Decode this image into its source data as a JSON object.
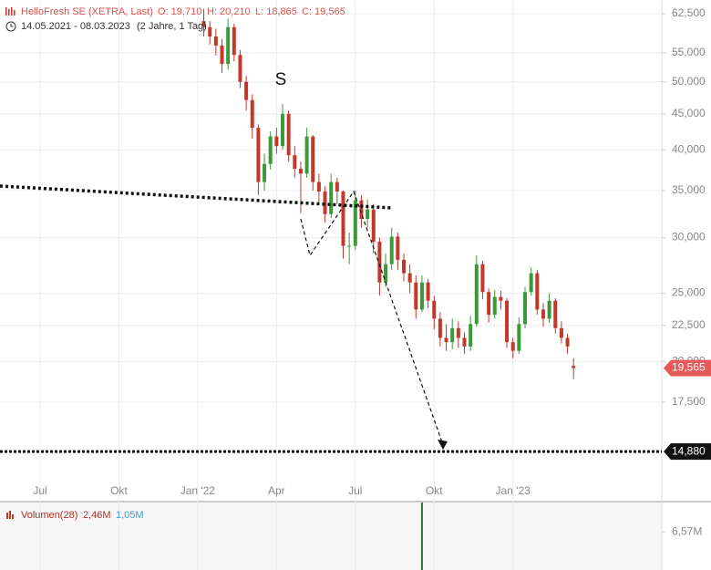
{
  "chart_data": [
    {
      "type": "candlestick",
      "title": "HelloFresh SE (XETRA, Last)",
      "ohlc_labels": [
        "O: 19,710",
        "H: 20,210",
        "L: 18,865",
        "C: 19,565"
      ],
      "date_range": "14.05.2021 - 08.03.2023",
      "period": "(2 Jahre, 1 Tag)",
      "annotation": "S",
      "log_scale": true,
      "grid": true,
      "up_color": "#3a9a3a",
      "down_color": "#c0392b",
      "categories": [
        null,
        null,
        null,
        null,
        null,
        null,
        "Jul",
        null,
        null,
        null,
        null,
        null,
        null,
        null,
        null,
        null,
        null,
        null,
        null,
        "Okt",
        null,
        null,
        null,
        null,
        null,
        null,
        null,
        null,
        null,
        null,
        null,
        null,
        "Jan '22",
        null,
        null,
        null,
        null,
        null,
        null,
        null,
        null,
        null,
        null,
        null,
        null,
        "Apr",
        null,
        null,
        null,
        null,
        null,
        null,
        null,
        null,
        null,
        null,
        null,
        null,
        "Jul",
        null,
        null,
        null,
        null,
        null,
        null,
        null,
        null,
        null,
        null,
        null,
        null,
        "Okt",
        null,
        null,
        null,
        null,
        null,
        null,
        null,
        null,
        null,
        null,
        null,
        null,
        "Jan '23",
        null,
        null,
        null,
        null,
        null,
        null,
        null,
        null,
        null,
        null
      ],
      "open": [
        null,
        null,
        null,
        null,
        null,
        null,
        null,
        null,
        null,
        null,
        null,
        null,
        null,
        null,
        null,
        null,
        null,
        null,
        null,
        null,
        null,
        null,
        null,
        null,
        null,
        null,
        null,
        null,
        null,
        null,
        null,
        null,
        null,
        61000,
        59800,
        58000,
        56300,
        53000,
        59800,
        54600,
        50000,
        47100,
        43000,
        36000,
        38200,
        41800,
        40500,
        45000,
        39300,
        37600,
        37000,
        41800,
        36000,
        34900,
        32400,
        36000,
        34900,
        29200,
        29200,
        33900,
        31900,
        32900,
        29600,
        25900,
        27500,
        30100,
        27900,
        26700,
        25900,
        23700,
        25900,
        24400,
        23000,
        21600,
        21300,
        22300,
        21600,
        21000,
        22600,
        27500,
        25100,
        23300,
        24700,
        24400,
        21300,
        20700,
        22600,
        25100,
        26700,
        23700,
        23000,
        24400,
        22300,
        21600,
        19710
      ],
      "high": [
        null,
        null,
        null,
        null,
        null,
        null,
        null,
        null,
        null,
        null,
        null,
        null,
        null,
        null,
        null,
        null,
        null,
        null,
        null,
        null,
        null,
        null,
        null,
        null,
        null,
        null,
        null,
        null,
        null,
        null,
        null,
        null,
        null,
        63500,
        61000,
        59500,
        57500,
        61500,
        60500,
        55500,
        51000,
        48000,
        43500,
        39500,
        42500,
        43000,
        46500,
        45500,
        40500,
        38500,
        43000,
        42000,
        37000,
        35500,
        37000,
        36500,
        35000,
        30500,
        35000,
        34500,
        34000,
        33500,
        30000,
        28500,
        31000,
        30500,
        28500,
        27500,
        26500,
        26500,
        26200,
        24800,
        23500,
        22600,
        23000,
        22800,
        22000,
        23200,
        28300,
        27800,
        25400,
        25300,
        25200,
        24600,
        21600,
        23100,
        25500,
        27200,
        27000,
        24200,
        25000,
        24600,
        22800,
        21900,
        20210
      ],
      "low": [
        null,
        null,
        null,
        null,
        null,
        null,
        null,
        null,
        null,
        null,
        null,
        null,
        null,
        null,
        null,
        null,
        null,
        null,
        null,
        null,
        null,
        null,
        null,
        null,
        null,
        null,
        null,
        null,
        null,
        null,
        null,
        null,
        null,
        58000,
        56500,
        54500,
        51500,
        52000,
        53500,
        49000,
        45500,
        41500,
        34500,
        35000,
        37500,
        39500,
        40000,
        38500,
        36500,
        32500,
        36500,
        35000,
        33500,
        31500,
        32000,
        33500,
        28000,
        27500,
        28800,
        31000,
        31000,
        28500,
        24800,
        25500,
        27000,
        27000,
        26000,
        25000,
        23000,
        23500,
        23800,
        22200,
        21000,
        20700,
        20800,
        20900,
        20500,
        20700,
        22400,
        24500,
        22700,
        23000,
        23700,
        20900,
        20200,
        20500,
        22300,
        24800,
        23300,
        22400,
        22700,
        21900,
        21200,
        20500,
        18865
      ],
      "close": [
        null,
        null,
        null,
        null,
        null,
        null,
        null,
        null,
        null,
        null,
        null,
        null,
        null,
        null,
        null,
        null,
        null,
        null,
        null,
        null,
        null,
        null,
        null,
        null,
        null,
        null,
        null,
        null,
        null,
        null,
        null,
        null,
        null,
        59800,
        58000,
        56300,
        53000,
        59800,
        54600,
        50000,
        47100,
        43000,
        36000,
        38200,
        41800,
        40500,
        45000,
        39300,
        37600,
        37000,
        41800,
        36000,
        34900,
        32400,
        36000,
        34900,
        29200,
        29200,
        33900,
        31900,
        32900,
        29600,
        25900,
        27500,
        30100,
        27900,
        26700,
        25900,
        23700,
        25900,
        24400,
        23000,
        21600,
        21300,
        22300,
        21600,
        21000,
        22600,
        27500,
        25100,
        23300,
        24700,
        24400,
        21300,
        20700,
        22600,
        25100,
        26700,
        23700,
        23000,
        24400,
        22300,
        21600,
        21000,
        19565
      ],
      "ylim": [
        12630,
        65370
      ],
      "yticks": [
        {
          "value": 62500,
          "label": "62,500"
        },
        {
          "value": 55000,
          "label": "55,000"
        },
        {
          "value": 50000,
          "label": "50,000"
        },
        {
          "value": 45000,
          "label": "45,000"
        },
        {
          "value": 40000,
          "label": "40,000"
        },
        {
          "value": 35000,
          "label": "35,000"
        },
        {
          "value": 30000,
          "label": "30,000"
        },
        {
          "value": 25000,
          "label": "25,000"
        },
        {
          "value": 22500,
          "label": "22,500"
        },
        {
          "value": 20000,
          "label": "20,000"
        },
        {
          "value": 17500,
          "label": "17,500"
        }
      ],
      "last_price": {
        "value": 19565,
        "label": "19,565"
      },
      "level": {
        "value": 14880,
        "label": "14,880"
      }
    },
    {
      "type": "bar",
      "title": "Volumen(28)",
      "legend_values": [
        "2,46M",
        "1,05M"
      ],
      "color": "#2e7d32",
      "values": [
        null,
        null,
        null,
        null,
        null,
        null,
        null,
        null,
        null,
        null,
        null,
        null,
        null,
        null,
        null,
        null,
        null,
        null,
        null,
        null,
        null,
        null,
        null,
        null,
        null,
        null,
        null,
        null,
        null,
        null,
        null,
        null,
        null,
        null,
        null,
        null,
        null,
        null,
        null,
        null,
        null,
        null,
        null,
        null,
        null,
        null,
        null,
        null,
        null,
        null,
        null,
        null,
        null,
        null,
        null,
        null,
        null,
        null,
        null,
        null,
        null,
        null,
        null,
        null,
        null,
        null,
        null,
        null,
        null,
        11600000,
        null,
        null,
        null,
        null,
        null,
        null,
        null,
        null,
        null,
        null,
        null,
        null,
        null,
        null,
        null,
        null,
        null,
        null,
        null,
        null,
        null,
        null,
        null,
        null,
        null
      ],
      "ylim": [
        0,
        11600000
      ],
      "yticks": [
        {
          "value": 6570000,
          "label": "6,57M"
        }
      ]
    }
  ]
}
